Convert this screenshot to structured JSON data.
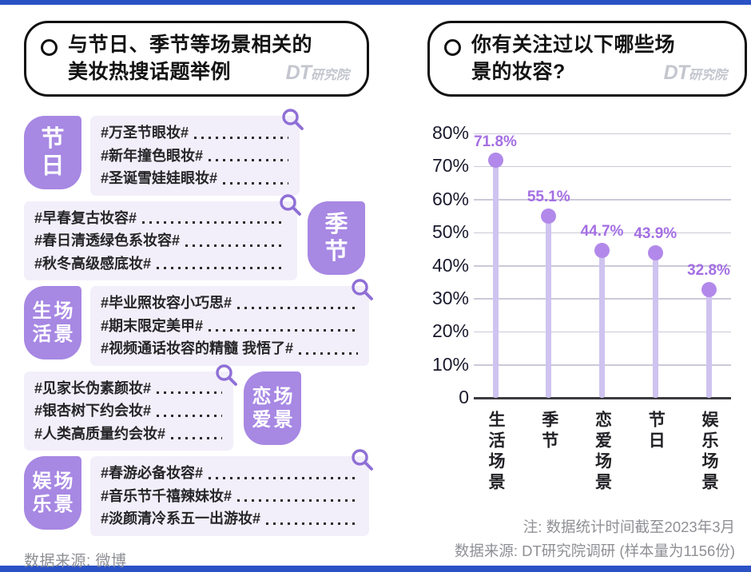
{
  "page": {
    "accent_bar_color": "#2a52c5",
    "background": "#ffffff"
  },
  "left_panel": {
    "title": {
      "line1": "与节日、季节等场景相关的",
      "line2": "美妆热搜话题举例"
    },
    "logo": {
      "dt": "DT",
      "rest": "研究院"
    },
    "groups": [
      {
        "badge": {
          "label": "节日",
          "rows": [
            "节",
            "日"
          ]
        },
        "topics": [
          "#万圣节眼妆#",
          "#新年撞色眼妆#",
          "#圣诞雪娃娃眼妆#"
        ]
      },
      {
        "badge": {
          "label": "季节",
          "rows": [
            "季",
            "节"
          ]
        },
        "topics": [
          "#早春复古妆容#",
          "#春日清透绿色系妆容#",
          "#秋冬高级感底妆#"
        ]
      },
      {
        "badge": {
          "label": "生活场景",
          "rows": [
            "生场",
            "活景"
          ]
        },
        "topics": [
          "#毕业照妆容小巧思#",
          "#期末限定美甲#",
          "#视频通话妆容的精髓 我悟了#"
        ]
      },
      {
        "badge": {
          "label": "恋爱场景",
          "rows": [
            "恋场",
            "爱景"
          ]
        },
        "topics": [
          "#见家长伪素颜妆#",
          "#银杏树下约会妆#",
          "#人类高质量约会妆#"
        ]
      },
      {
        "badge": {
          "label": "娱乐场景",
          "rows": [
            "娱场",
            "乐景"
          ]
        },
        "topics": [
          "#春游必备妆容#",
          "#音乐节千禧辣妹妆#",
          "#淡颜清冷系五一出游妆#"
        ]
      }
    ],
    "footer": "数据来源: 微博"
  },
  "right_panel": {
    "title": {
      "line1": "你有关注过以下哪些场",
      "line2": "景的妆容?"
    },
    "logo": {
      "dt": "DT",
      "rest": "研究院"
    },
    "notes": [
      "注: 数据统计时间截至2023年3月",
      "数据来源: DT研究院调研 (样本量为1156份)"
    ]
  },
  "chart_data": {
    "type": "bar",
    "style": "lollipop",
    "categories": [
      "生活场景",
      "季节",
      "恋爱场景",
      "节日",
      "娱乐场景"
    ],
    "values": [
      71.8,
      55.1,
      44.7,
      43.9,
      32.8
    ],
    "value_labels": [
      "71.8%",
      "55.1%",
      "44.7%",
      "43.9%",
      "32.8%"
    ],
    "y_ticks": [
      "80%",
      "70%",
      "60%",
      "50%",
      "40%",
      "30%",
      "20%",
      "10%",
      "0"
    ],
    "y_tick_values": [
      80,
      70,
      60,
      50,
      40,
      30,
      20,
      10,
      0
    ],
    "ylim": [
      0,
      80
    ],
    "grid": "horizontal",
    "legend": "none",
    "colors": {
      "stem": "#cfc3f0",
      "marker": "#b289ea",
      "value_label": "#a46fe3"
    }
  }
}
